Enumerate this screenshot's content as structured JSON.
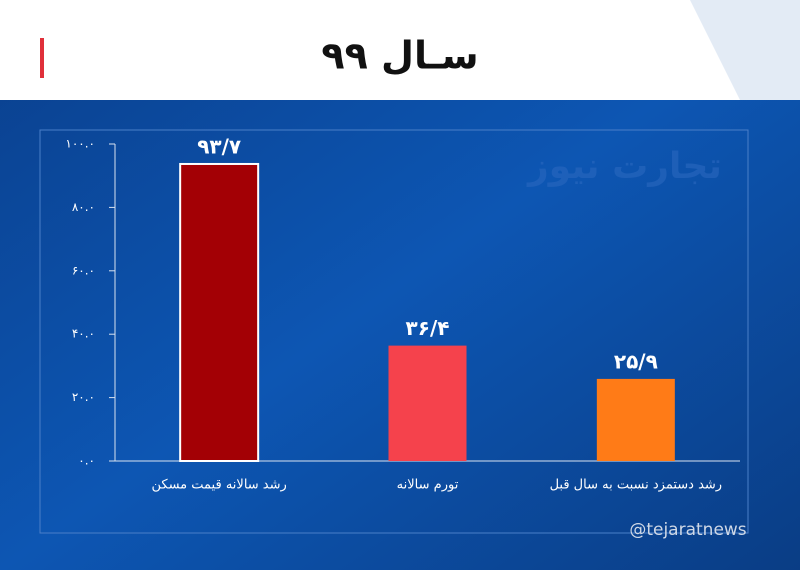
{
  "chart_data": {
    "type": "bar",
    "title": "سـال ۹۹",
    "watermark": "تجارت نیوز",
    "handle": "@tejaratnews",
    "categories": [
      "رشد سالانه قیمت مسکن",
      "تورم سالانه",
      "رشد دستمزد نسبت به سال قبل"
    ],
    "values": [
      93.7,
      36.4,
      25.9
    ],
    "value_labels": [
      "۹۳/۷",
      "۳۶/۴",
      "۲۵/۹"
    ],
    "colors": [
      "#a30005",
      "#f5424c",
      "#ff7b17"
    ],
    "ylim": [
      0,
      100
    ],
    "yticks": [
      {
        "value": 0,
        "label": "۰.۰"
      },
      {
        "value": 20,
        "label": "۲۰.۰"
      },
      {
        "value": 40,
        "label": "۴۰.۰"
      },
      {
        "value": 60,
        "label": "۶۰.۰"
      },
      {
        "value": 80,
        "label": "۸۰.۰"
      },
      {
        "value": 100,
        "label": "۱۰۰.۰"
      }
    ]
  }
}
